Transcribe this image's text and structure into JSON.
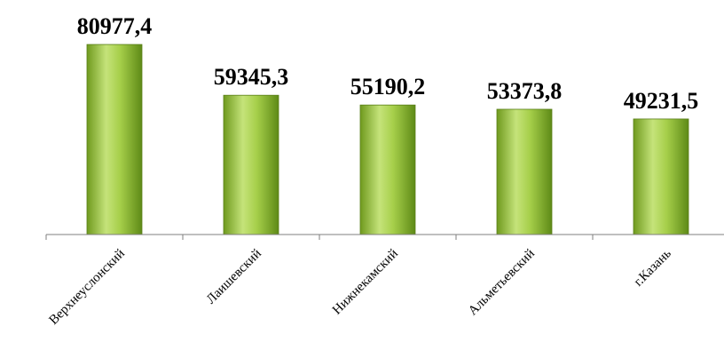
{
  "chart_data": {
    "type": "bar",
    "categories": [
      "Верхнеуслонский",
      "Лаишевский",
      "Нижнекамский",
      "Альметьевский",
      "г.Казань"
    ],
    "values": [
      80977.4,
      59345.3,
      55190.2,
      53373.8,
      49231.5
    ],
    "value_labels": [
      "80977,4",
      "59345,3",
      "55190,2",
      "53373,8",
      "49231,5"
    ],
    "title": "",
    "xlabel": "",
    "ylabel": "",
    "ylim": [
      0,
      81000
    ],
    "grid": false,
    "legend": "none",
    "colors": {
      "bar_light": "#c5e37a",
      "bar_mid": "#9bc53d",
      "bar_dark": "#5e8a17",
      "bar_edge": "#5a7f1a",
      "axis": "#7f7f7f"
    }
  }
}
